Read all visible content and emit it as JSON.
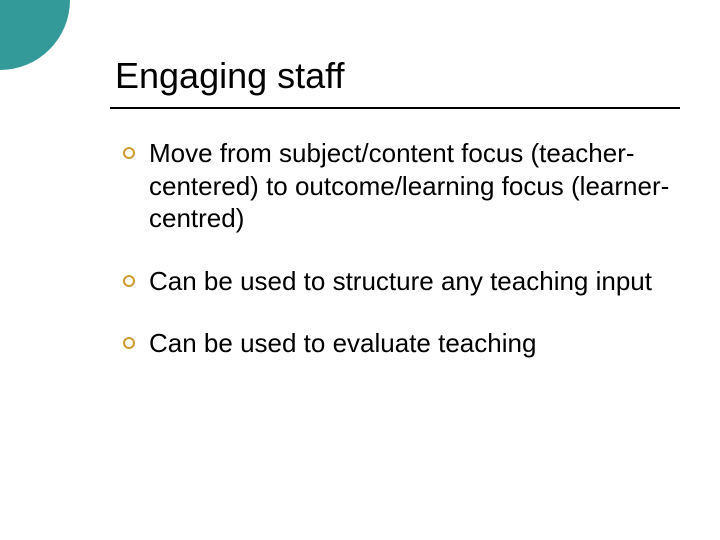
{
  "slide": {
    "title": "Engaging staff",
    "bullets": [
      "Move from subject/content focus (teacher-centered) to outcome/learning focus (learner-centred)",
      "Can be used to structure any teaching input",
      "Can be used to evaluate teaching"
    ]
  },
  "style": {
    "accent_circle_color": "#339999",
    "bullet_ring_color": "#cc9933",
    "background_color": "#ffffff",
    "text_color": "#000000",
    "title_fontsize": 36,
    "body_fontsize": 26,
    "underline_color": "#000000"
  }
}
